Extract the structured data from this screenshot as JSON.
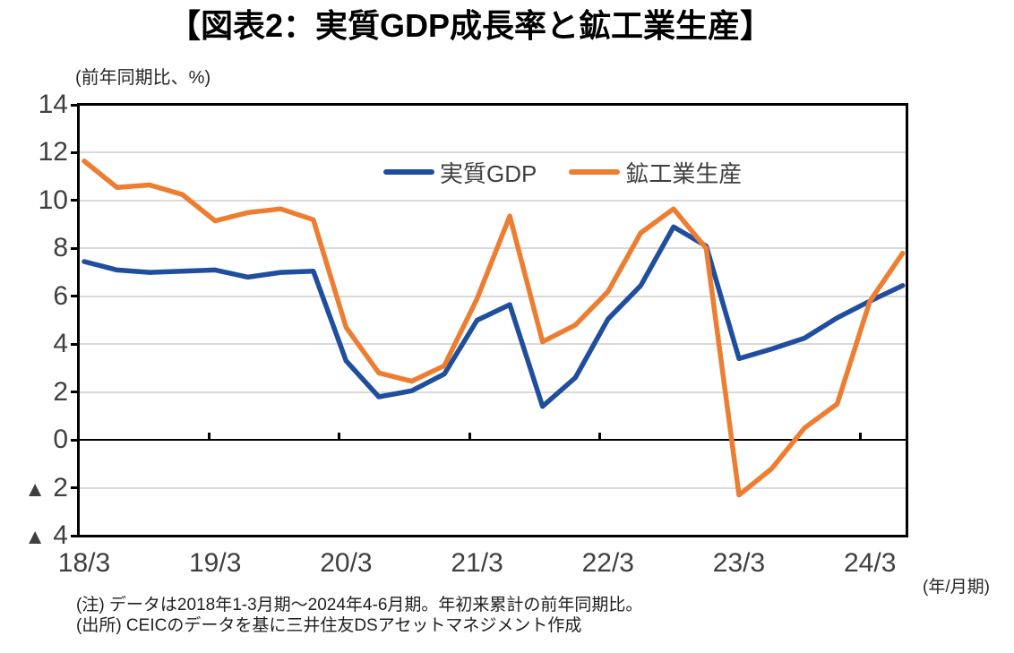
{
  "page": {
    "notes": [
      "(注) データは2018年1-3月期～2024年4-6月期。年初来累計の前年同期比。",
      "(出所) CEICのデータを基に三井住友DSアセットマネジメント作成"
    ]
  },
  "chart_data": {
    "type": "line",
    "title": "【図表2：実質GDP成長率と鉱工業生産】",
    "y_axis_unit": "(前年同期比、%)",
    "x_axis_unit": "(年/月期)",
    "categories": [
      "18/3",
      "18/6",
      "18/9",
      "18/12",
      "19/3",
      "19/6",
      "19/9",
      "19/12",
      "20/3",
      "20/6",
      "20/9",
      "20/12",
      "21/3",
      "21/6",
      "21/9",
      "21/12",
      "22/3",
      "22/6",
      "22/9",
      "22/12",
      "23/3",
      "23/6",
      "23/9",
      "23/12",
      "24/3",
      "24/6"
    ],
    "x_tick_labels": [
      "18/3",
      "19/3",
      "20/3",
      "21/3",
      "22/3",
      "23/3",
      "24/3"
    ],
    "y_ticks": [
      14,
      12,
      10,
      8,
      6,
      4,
      2,
      0,
      -2,
      -4
    ],
    "ylim": [
      -4,
      14
    ],
    "grid": "horizontal-light-gray",
    "gridline_color": "#d9d9d9",
    "negative_sign_glyph": "▲",
    "legend_position": "inside-top-center",
    "series": [
      {
        "name": "実質GDP",
        "color": "#1f4e9e",
        "values": [
          7.45,
          7.1,
          7.0,
          7.05,
          7.1,
          6.8,
          7.0,
          7.05,
          3.3,
          1.8,
          2.05,
          2.75,
          5.0,
          5.65,
          1.4,
          2.6,
          5.05,
          6.45,
          8.9,
          8.1,
          3.4,
          3.8,
          4.25,
          5.1,
          5.8,
          6.45
        ]
      },
      {
        "name": "鉱工業生産",
        "color": "#ed7d31",
        "values": [
          11.65,
          10.55,
          10.65,
          10.25,
          9.15,
          9.5,
          9.65,
          9.2,
          4.7,
          2.8,
          2.45,
          3.1,
          5.9,
          9.35,
          4.1,
          4.8,
          6.2,
          8.65,
          9.65,
          8.0,
          -2.3,
          -1.2,
          0.5,
          1.5,
          5.8,
          7.8
        ]
      }
    ]
  }
}
